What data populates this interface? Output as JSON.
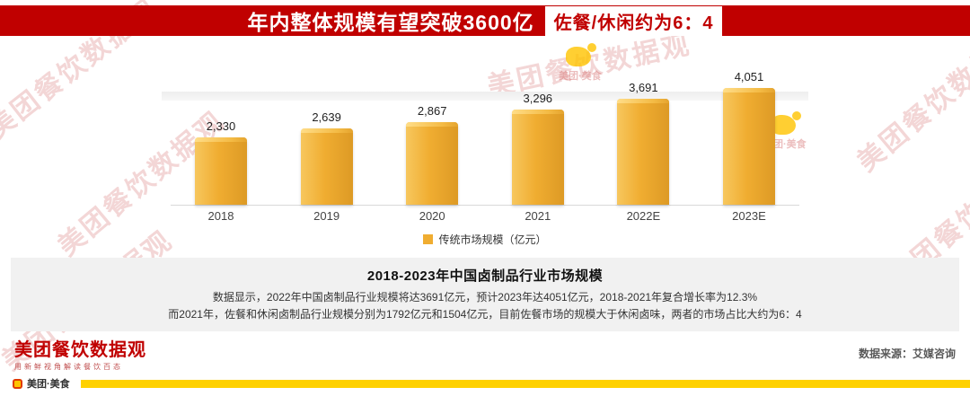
{
  "header": {
    "title": "年内整体规模有望突破3600亿",
    "highlight": "佐餐/休闲约为6：4"
  },
  "chart_data": {
    "type": "bar",
    "title": "2018-2023年中国卤制品行业市场规模",
    "categories": [
      "2018",
      "2019",
      "2020",
      "2021",
      "2022E",
      "2023E"
    ],
    "values": [
      2330,
      2639,
      2867,
      3296,
      3691,
      4051
    ],
    "value_labels": [
      "2,330",
      "2,639",
      "2,867",
      "3,296",
      "3,691",
      "4,051"
    ],
    "legend": "传统市场规模（亿元）",
    "unit": "亿元",
    "bar_color": "#F0AD31",
    "ylim": [
      0,
      4500
    ],
    "grid": false,
    "legend_position": "bottom"
  },
  "summary": {
    "line1": "数据显示，2022年中国卤制品行业规模将达3691亿元，预计2023年达4051亿元，2018-2021年复合增长率为12.3%",
    "line2": "而2021年，佐餐和休闲卤制品行业规模分别为1792亿元和1504亿元，目前佐餐市场的规模大于休闲卤味，两者的市场占比大约为6：4"
  },
  "footer": {
    "brand": "美团餐饮数据观",
    "tagline": "用新鲜视角解读餐饮百态",
    "source": "数据来源：艾媒咨询",
    "bottom_brand": "美团·美食"
  },
  "watermark": {
    "text": "美团餐饮数据观",
    "sub": "美团·美食",
    "color": "#E8A0A0",
    "icon_color": "#FFC400"
  }
}
